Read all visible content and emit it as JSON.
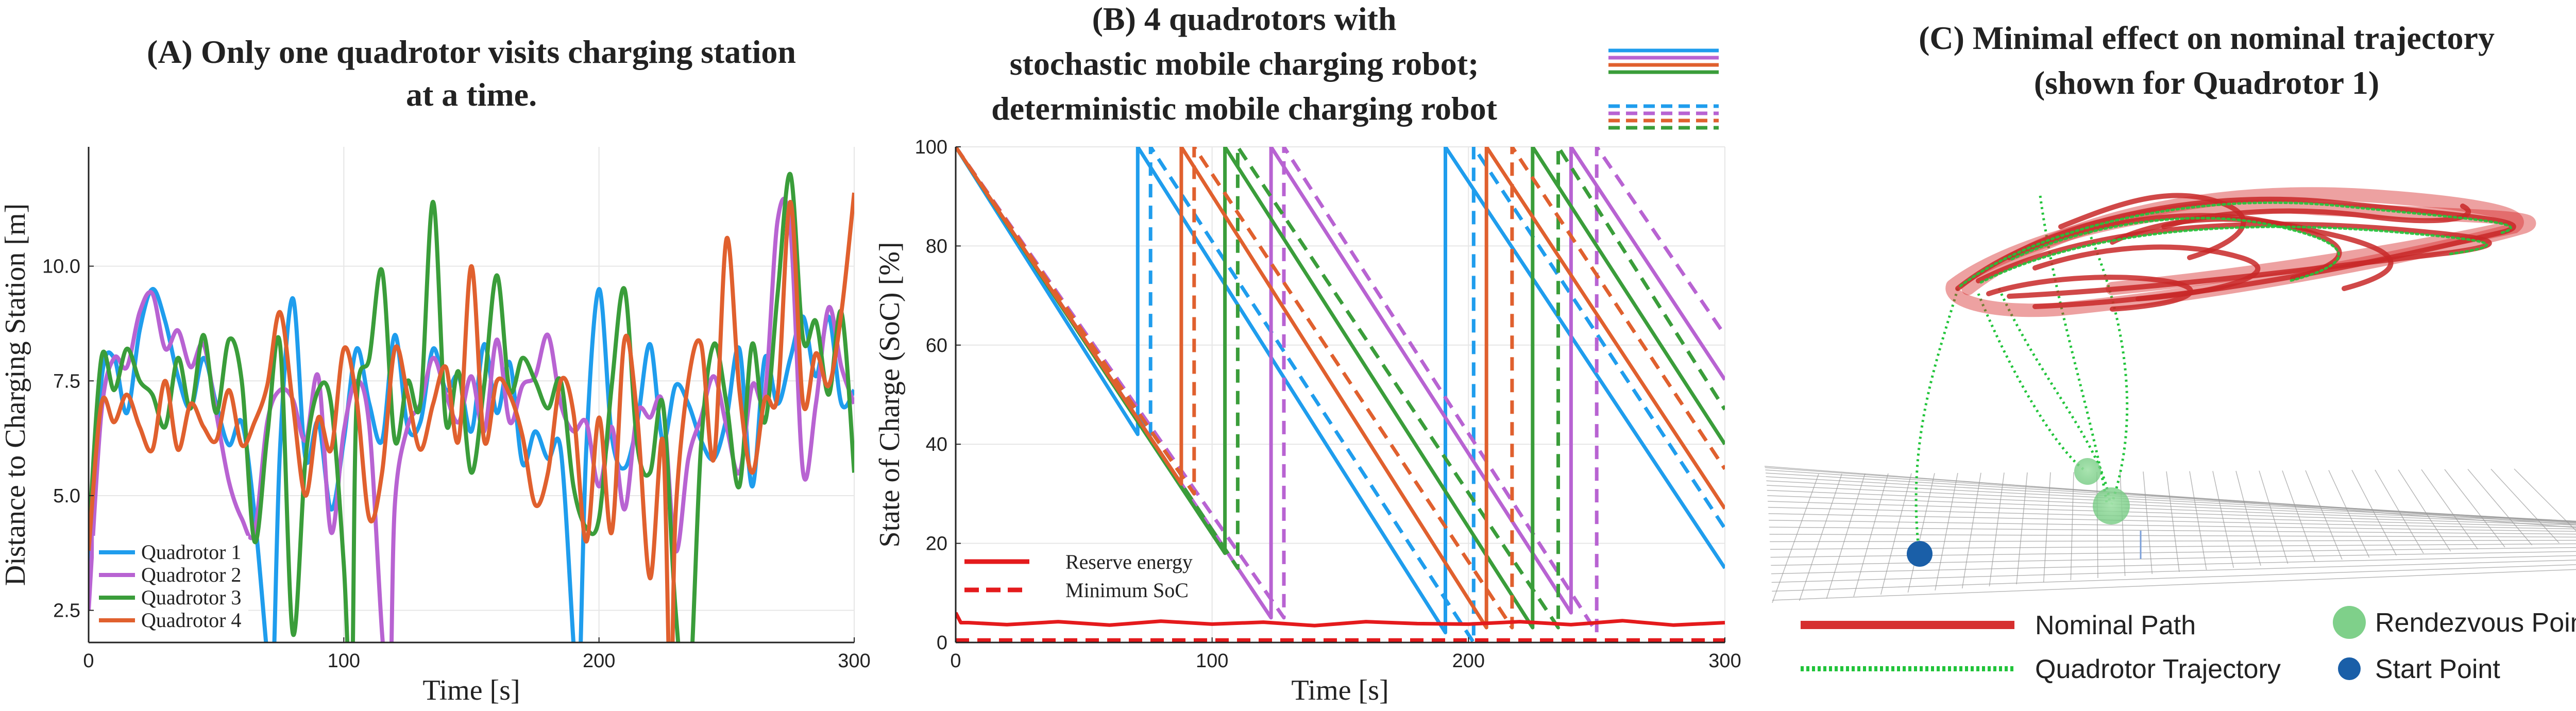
{
  "colors": {
    "q1": "#1f9ded",
    "q2": "#b863d2",
    "q3": "#3a9d3a",
    "q4": "#e0602e",
    "reserve": "#e41a1c",
    "nominal": "#d62f2f",
    "trajectory": "#21c43a",
    "rendezvous": "#7fd08a",
    "start": "#1a5fa8"
  },
  "panels": {
    "a": {
      "title_line1": "(A) Only one quadrotor visits charging station",
      "title_line2": "at a time."
    },
    "b": {
      "title_line1": "(B) 4 quadrotors with",
      "title_line2": "stochastic mobile charging robot;",
      "title_line3": "deterministic mobile charging robot"
    },
    "c": {
      "title_line1": "(C) Minimal effect on nominal trajectory",
      "title_line2": "(shown for Quadrotor 1)"
    }
  },
  "chart_data": [
    {
      "id": "A",
      "type": "line",
      "title": "(A) Only one quadrotor visits charging station at a time.",
      "xlabel": "Time [s]",
      "ylabel": "Distance to Charging Station [m]",
      "xlim": [
        0,
        300
      ],
      "ylim": [
        1.8,
        12.6
      ],
      "xticks": [
        0,
        100,
        200,
        300
      ],
      "yticks": [
        2.5,
        5.0,
        7.5,
        10.0
      ],
      "ytick_labels": [
        "2.5",
        "5.0",
        "7.5",
        "10.0"
      ],
      "grid": true,
      "legend_position": "bottom-left",
      "series": [
        {
          "name": "Quadrotor 1",
          "color_key": "q1",
          "x": [
            0,
            5,
            10,
            15,
            20,
            25,
            30,
            35,
            40,
            45,
            50,
            55,
            60,
            65,
            70,
            72,
            75,
            80,
            85,
            90,
            95,
            100,
            105,
            110,
            115,
            120,
            125,
            130,
            135,
            140,
            145,
            150,
            155,
            160,
            165,
            170,
            175,
            180,
            185,
            190,
            192,
            195,
            200,
            205,
            210,
            215,
            220,
            225,
            230,
            235,
            240,
            245,
            250,
            255,
            260,
            265,
            270,
            275,
            280,
            285,
            290,
            295,
            300
          ],
          "y": [
            2.9,
            7.5,
            8.0,
            6.8,
            8.6,
            9.5,
            8.8,
            7.6,
            6.9,
            8.0,
            7.0,
            6.1,
            6.6,
            4.6,
            1.5,
            0.5,
            6.0,
            9.3,
            5.8,
            6.6,
            4.7,
            6.2,
            8.2,
            7.0,
            6.2,
            8.5,
            6.5,
            6.6,
            8.2,
            7.3,
            7.6,
            6.4,
            8.3,
            6.8,
            7.9,
            5.7,
            6.4,
            5.8,
            6.0,
            1.8,
            0.4,
            6.0,
            9.5,
            6.3,
            5.6,
            6.6,
            8.3,
            6.2,
            7.4,
            7.0,
            6.2,
            5.8,
            6.7,
            8.2,
            5.2,
            8.0,
            7.0,
            8.0,
            8.9,
            7.6,
            8.9,
            7.0,
            7.3
          ]
        },
        {
          "name": "Quadrotor 2",
          "color_key": "q2",
          "x": [
            0,
            5,
            10,
            15,
            20,
            25,
            30,
            35,
            40,
            45,
            50,
            55,
            60,
            65,
            70,
            75,
            80,
            85,
            90,
            95,
            100,
            105,
            110,
            115,
            118,
            120,
            125,
            130,
            135,
            140,
            145,
            150,
            155,
            160,
            165,
            170,
            175,
            180,
            185,
            190,
            195,
            200,
            205,
            210,
            215,
            220,
            225,
            230,
            235,
            240,
            245,
            250,
            255,
            260,
            265,
            270,
            275,
            280,
            285,
            290,
            295,
            300
          ],
          "y": [
            2.5,
            6.8,
            8.0,
            7.8,
            9.0,
            9.4,
            8.2,
            8.6,
            7.8,
            8.3,
            6.8,
            5.3,
            4.5,
            4.2,
            6.6,
            7.3,
            7.1,
            6.2,
            7.6,
            4.2,
            6.4,
            7.5,
            6.5,
            2.0,
            0.4,
            4.8,
            6.5,
            7.0,
            8.0,
            7.2,
            6.6,
            7.6,
            6.4,
            8.4,
            6.6,
            7.4,
            7.6,
            8.5,
            7.0,
            6.4,
            6.6,
            5.2,
            6.5,
            4.7,
            6.8,
            6.7,
            7.0,
            3.8,
            5.8,
            6.7,
            7.6,
            6.5,
            5.5,
            7.4,
            7.2,
            11.0,
            10.8,
            5.5,
            7.0,
            9.1,
            7.8,
            7.0
          ]
        },
        {
          "name": "Quadrotor 3",
          "color_key": "q3",
          "x": [
            0,
            5,
            10,
            15,
            20,
            25,
            30,
            35,
            40,
            45,
            50,
            55,
            60,
            65,
            70,
            75,
            80,
            85,
            90,
            95,
            100,
            103,
            105,
            110,
            115,
            120,
            125,
            130,
            135,
            140,
            145,
            150,
            155,
            160,
            165,
            170,
            175,
            180,
            185,
            190,
            195,
            200,
            205,
            210,
            215,
            220,
            225,
            230,
            235,
            240,
            245,
            250,
            255,
            260,
            265,
            270,
            275,
            280,
            285,
            290,
            295,
            300
          ],
          "y": [
            4.0,
            8.0,
            7.3,
            8.2,
            7.5,
            7.2,
            6.5,
            8.0,
            6.9,
            8.5,
            6.8,
            8.4,
            7.5,
            4.0,
            6.3,
            8.3,
            2.0,
            5.8,
            7.3,
            7.0,
            3.5,
            0.4,
            7.0,
            8.0,
            9.9,
            6.2,
            7.5,
            7.0,
            11.4,
            6.6,
            7.7,
            5.5,
            7.4,
            9.8,
            7.3,
            8.0,
            7.5,
            6.9,
            7.5,
            5.2,
            4.3,
            4.5,
            7.4,
            9.5,
            6.1,
            5.5,
            7.0,
            2.5,
            0.4,
            6.1,
            8.3,
            7.0,
            5.2,
            8.3,
            6.6,
            9.4,
            12.0,
            8.4,
            8.8,
            7.2,
            9.0,
            5.5
          ]
        },
        {
          "name": "Quadrotor 4",
          "color_key": "q4",
          "x": [
            0,
            5,
            10,
            15,
            20,
            25,
            30,
            35,
            40,
            45,
            50,
            55,
            60,
            65,
            70,
            75,
            80,
            85,
            90,
            95,
            100,
            105,
            110,
            115,
            120,
            125,
            130,
            135,
            140,
            145,
            150,
            155,
            160,
            165,
            170,
            175,
            180,
            185,
            190,
            195,
            200,
            205,
            210,
            215,
            220,
            225,
            228,
            230,
            235,
            240,
            245,
            250,
            255,
            260,
            265,
            270,
            275,
            280,
            285,
            290,
            295,
            300
          ],
          "y": [
            3.8,
            7.0,
            6.6,
            7.2,
            6.5,
            6.0,
            7.5,
            6.0,
            7.0,
            6.5,
            6.2,
            7.3,
            6.1,
            6.6,
            7.4,
            9.0,
            7.0,
            5.0,
            6.7,
            6.0,
            8.2,
            7.1,
            4.5,
            5.5,
            8.2,
            7.2,
            6.0,
            7.0,
            7.8,
            6.2,
            10.0,
            6.2,
            7.5,
            7.2,
            6.3,
            4.8,
            5.5,
            7.5,
            6.8,
            4.0,
            6.7,
            4.2,
            8.4,
            6.7,
            3.2,
            6.2,
            0.4,
            4.6,
            7.5,
            8.3,
            5.8,
            10.6,
            7.3,
            5.5,
            7.1,
            7.2,
            11.4,
            7.0,
            8.1,
            7.4,
            9.0,
            11.6
          ]
        }
      ]
    },
    {
      "id": "B",
      "type": "line",
      "title": "(B) 4 quadrotors with stochastic mobile charging robot; deterministic mobile charging robot",
      "xlabel": "Time [s]",
      "ylabel": "State of Charge (SoC) [%]",
      "xlim": [
        0,
        300
      ],
      "ylim": [
        0,
        100
      ],
      "xticks": [
        0,
        100,
        200,
        300
      ],
      "yticks": [
        0,
        20,
        40,
        60,
        80,
        100
      ],
      "grid": true,
      "legend_position": "bottom-left",
      "legend_entries": [
        "Reserve energy",
        "Minimum SoC"
      ],
      "style_legend_position": "top-right",
      "style_legend": [
        "solid: stochastic mobile charging robot",
        "dashed: deterministic mobile charging robot"
      ],
      "series": [
        {
          "name": "Quadrotor 1 (stochastic)",
          "color_key": "q1",
          "dashed": false,
          "x": [
            0,
            71,
            71,
            191,
            191,
            300
          ],
          "y": [
            100,
            42,
            100,
            2,
            100,
            15
          ]
        },
        {
          "name": "Quadrotor 1 (deterministic)",
          "color_key": "q1",
          "dashed": true,
          "x": [
            0,
            76,
            76,
            202,
            202,
            300
          ],
          "y": [
            100,
            42,
            100,
            0,
            100,
            23
          ]
        },
        {
          "name": "Quadrotor 2 (stochastic)",
          "color_key": "q2",
          "dashed": false,
          "x": [
            0,
            123,
            123,
            240,
            240,
            300
          ],
          "y": [
            100,
            5,
            100,
            6,
            100,
            53
          ]
        },
        {
          "name": "Quadrotor 2 (deterministic)",
          "color_key": "q2",
          "dashed": true,
          "x": [
            0,
            128,
            128,
            250,
            250,
            300
          ],
          "y": [
            100,
            5,
            100,
            2,
            100,
            62
          ]
        },
        {
          "name": "Quadrotor 3 (stochastic)",
          "color_key": "q3",
          "dashed": false,
          "x": [
            0,
            105,
            105,
            225,
            225,
            300
          ],
          "y": [
            100,
            18,
            100,
            3,
            100,
            40
          ]
        },
        {
          "name": "Quadrotor 3 (deterministic)",
          "color_key": "q3",
          "dashed": true,
          "x": [
            0,
            110,
            110,
            235,
            235,
            300
          ],
          "y": [
            100,
            15,
            100,
            3,
            100,
            47
          ]
        },
        {
          "name": "Quadrotor 4 (stochastic)",
          "color_key": "q4",
          "dashed": false,
          "x": [
            0,
            88,
            88,
            207,
            207,
            300
          ],
          "y": [
            100,
            32,
            100,
            3,
            100,
            27
          ]
        },
        {
          "name": "Quadrotor 4 (deterministic)",
          "color_key": "q4",
          "dashed": true,
          "x": [
            0,
            93,
            93,
            217,
            217,
            300
          ],
          "y": [
            100,
            30,
            100,
            3,
            100,
            35
          ]
        },
        {
          "name": "Reserve energy",
          "color_key": "reserve",
          "dashed": false,
          "x": [
            0,
            2,
            5,
            20,
            40,
            60,
            80,
            100,
            120,
            140,
            160,
            180,
            200,
            220,
            240,
            260,
            280,
            300
          ],
          "y": [
            6,
            4,
            4,
            3.6,
            4.2,
            3.5,
            4.3,
            3.7,
            4.1,
            3.4,
            4.2,
            3.8,
            3.7,
            4.2,
            3.6,
            4.4,
            3.5,
            4.0
          ]
        },
        {
          "name": "Minimum SoC",
          "color_key": "reserve",
          "dashed": true,
          "x": [
            0,
            300
          ],
          "y": [
            0.5,
            0.5
          ]
        }
      ]
    }
  ],
  "panel_c": {
    "legend": {
      "nominal": "Nominal Path",
      "trajectory": "Quadrotor Trajectory",
      "rendezvous": "Rendezvous Point",
      "start": "Start Point"
    }
  }
}
